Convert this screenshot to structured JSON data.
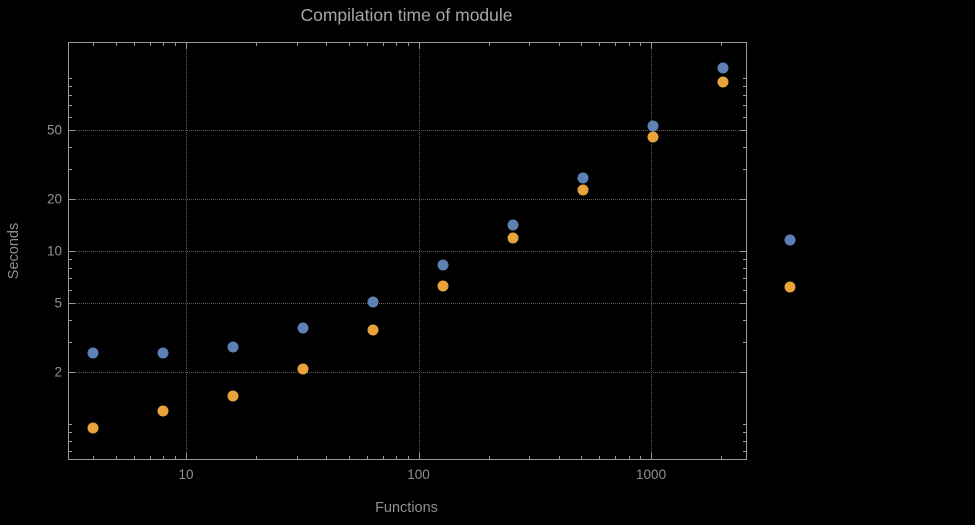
{
  "chart": {
    "title": "Compilation time of module",
    "xlabel": "Functions",
    "ylabel": "Seconds"
  },
  "chart_data": {
    "type": "scatter",
    "title": "Compilation time of module",
    "xlabel": "Functions",
    "ylabel": "Seconds",
    "x_scale": "log",
    "y_scale": "log",
    "xlim": [
      3.14,
      2560
    ],
    "ylim": [
      0.63,
      160
    ],
    "x_ticks": [
      10,
      100,
      1000
    ],
    "y_ticks": [
      2,
      5,
      10,
      20,
      50
    ],
    "x_minor_ticks": [
      4,
      5,
      6,
      7,
      8,
      9,
      20,
      30,
      40,
      50,
      60,
      70,
      80,
      90,
      200,
      300,
      400,
      500,
      600,
      700,
      800,
      900,
      2000
    ],
    "y_minor_ticks": [
      0.7,
      0.8,
      0.9,
      1,
      3,
      4,
      6,
      7,
      8,
      9,
      30,
      40,
      60,
      70,
      80,
      90,
      100
    ],
    "grid": "dotted",
    "legend_position": "right-outside",
    "x": [
      4,
      8,
      16,
      32,
      64,
      128,
      256,
      512,
      1024,
      2048
    ],
    "series": [
      {
        "name": "series-blue",
        "color": "#5e81b5",
        "values": [
          2.6,
          2.6,
          2.8,
          3.6,
          5.1,
          8.3,
          14.2,
          26.5,
          53,
          115
        ]
      },
      {
        "name": "series-orange",
        "color": "#e8a33d",
        "values": [
          0.95,
          1.2,
          1.45,
          2.1,
          3.5,
          6.3,
          12,
          22.5,
          46,
          95
        ]
      }
    ],
    "legend_markers": [
      {
        "name": "legend-marker-blue",
        "color": "#5e81b5"
      },
      {
        "name": "legend-marker-orange",
        "color": "#e8a33d"
      }
    ],
    "colors": {
      "background": "#000000",
      "frame": "#9a9a9a",
      "grid": "#5c5c5c",
      "title": "#a6a6a6",
      "tick_text": "#929292"
    }
  }
}
